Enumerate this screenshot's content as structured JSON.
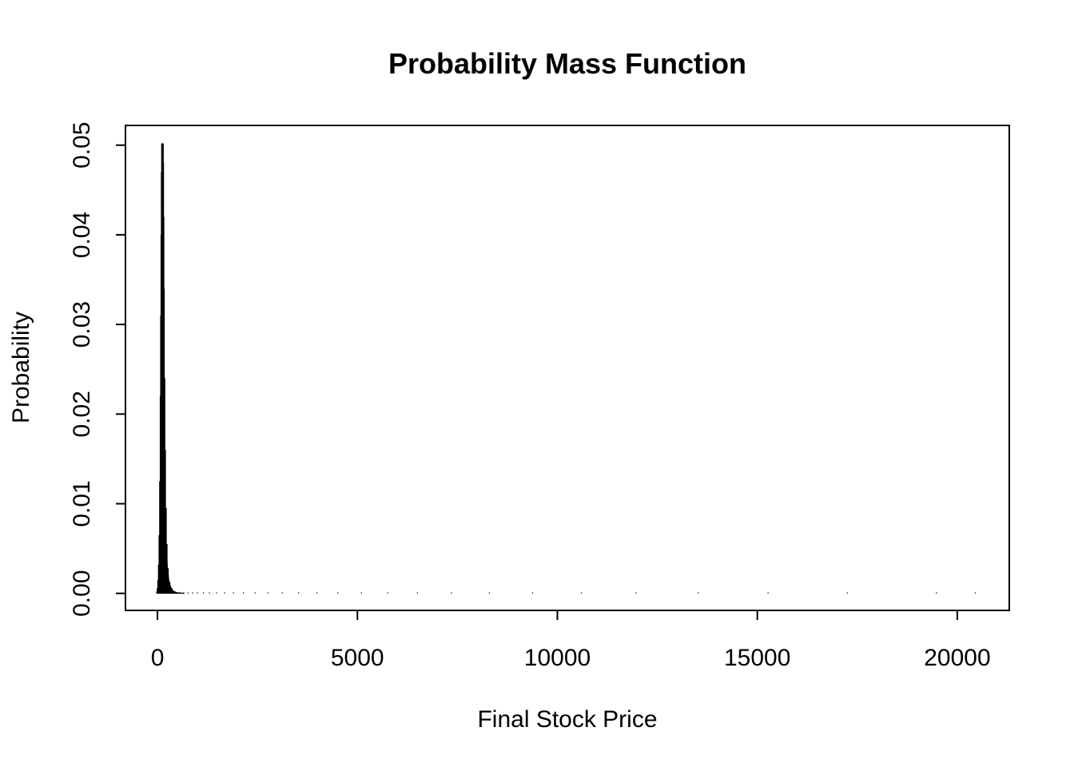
{
  "chart_data": {
    "type": "bar",
    "title": "Probability Mass Function",
    "xlabel": "Final Stock Price",
    "ylabel": "Probability",
    "xlim": [
      -800,
      21300
    ],
    "ylim": [
      -0.0019,
      0.0522
    ],
    "x_ticks": [
      0,
      5000,
      10000,
      15000,
      20000
    ],
    "x_tick_labels": [
      "0",
      "5000",
      "10000",
      "15000",
      "20000"
    ],
    "y_ticks": [
      0,
      0.01,
      0.02,
      0.03,
      0.04,
      0.05
    ],
    "y_tick_labels": [
      "0.00",
      "0.01",
      "0.02",
      "0.03",
      "0.04",
      "0.05"
    ],
    "grid": false,
    "legend": "none",
    "bar_color": "#000000",
    "peak": {
      "x": 125,
      "y": 0.0502
    },
    "series": [
      {
        "x": [
          0,
          15,
          30,
          45,
          60,
          75,
          90,
          100,
          110,
          118,
          125,
          132,
          140,
          150,
          165,
          180,
          200,
          220,
          250,
          290,
          340,
          400,
          480,
          560,
          660,
          760,
          880,
          1000,
          1150,
          1300,
          1480,
          1680,
          1900,
          2150,
          2440,
          2760,
          3120,
          3530,
          3990,
          4510,
          5100,
          5760,
          6500,
          7350,
          8300,
          9380,
          10600,
          11970,
          13520,
          15270,
          17250,
          19480,
          20450
        ],
        "values": [
          0.0002,
          0.0006,
          0.0015,
          0.0032,
          0.0065,
          0.0125,
          0.022,
          0.031,
          0.04,
          0.047,
          0.0502,
          0.048,
          0.042,
          0.034,
          0.024,
          0.016,
          0.0095,
          0.0055,
          0.0028,
          0.0013,
          0.0006,
          0.00025,
          0.0001,
          4e-05,
          2e-05,
          1e-05,
          5e-06,
          2e-06,
          1e-06,
          5e-07,
          2e-07,
          1e-07,
          5e-08,
          2e-08,
          1e-08,
          5e-09,
          2e-09,
          1e-09,
          5e-10,
          2e-10,
          1e-10,
          5e-11,
          2e-11,
          1e-11,
          5e-12,
          2e-12,
          1e-12,
          5e-13,
          2e-13,
          1e-13,
          5e-14,
          2e-14,
          1e-14
        ]
      }
    ]
  }
}
